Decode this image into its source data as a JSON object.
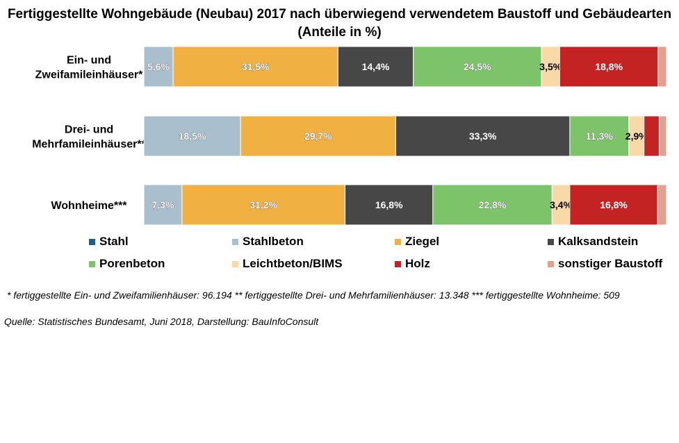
{
  "chart_data": {
    "type": "bar",
    "orientation": "horizontal",
    "stacked": "100%",
    "title": "Fertiggestellte Wohngebäude (Neubau) 2017 nach überwiegend verwendetem Baustoff und Gebäudearten (Anteile in %)",
    "categories": [
      [
        "Ein- und",
        "Zweifamileinhäuser*"
      ],
      [
        "Drei- und",
        "Mehrfamileinhäuser**"
      ],
      [
        "Wohnheime***"
      ]
    ],
    "series": [
      {
        "name": "Stahl",
        "color": "#1f5f7f",
        "values": [
          0.0,
          0.0,
          0.0
        ],
        "labels": [
          "",
          "",
          ""
        ]
      },
      {
        "name": "Stahlbeton",
        "color": "#a9bfcd",
        "values": [
          5.6,
          18.5,
          7.3
        ],
        "labels": [
          "5,6%",
          "18,5%",
          "7,3%"
        ]
      },
      {
        "name": "Ziegel",
        "color": "#f0b042",
        "values": [
          31.5,
          29.7,
          31.2
        ],
        "labels": [
          "31,5%",
          "29,7%",
          "31,2%"
        ]
      },
      {
        "name": "Kalksandstein",
        "color": "#474747",
        "values": [
          14.4,
          33.3,
          16.8
        ],
        "labels": [
          "14,4%",
          "33,3%",
          "16,8%"
        ]
      },
      {
        "name": "Porenbeton",
        "color": "#7cc36a",
        "values": [
          24.5,
          11.3,
          22.8
        ],
        "labels": [
          "24,5%",
          "11,3%",
          "22,8%"
        ]
      },
      {
        "name": "Leichtbeton/BIMS",
        "color": "#fad9a8",
        "values": [
          3.5,
          2.9,
          3.4
        ],
        "labels": [
          "3,5%",
          "2,9%",
          "3,4%"
        ]
      },
      {
        "name": "Holz",
        "color": "#c42324",
        "values": [
          18.8,
          2.9,
          16.8
        ],
        "labels": [
          "18,8%",
          "",
          "16,8%"
        ]
      },
      {
        "name": "sonstiger Baustoff",
        "color": "#e4a08f",
        "values": [
          1.6,
          1.4,
          1.7
        ],
        "labels": [
          "",
          "",
          ""
        ]
      }
    ],
    "xlim": [
      0,
      100
    ],
    "legend_position": "bottom"
  },
  "footnote": "* fertiggestellte Ein- und Zweifamilienhäuser:   96.194 ** fertiggestellte Drei- und Mehrfamilienhäuser: 13.348 *** fertiggestellte Wohnheime: 509",
  "source": "Quelle: Statistisches Bundesamt, Juni 2018, Darstellung: BauInfoConsult"
}
